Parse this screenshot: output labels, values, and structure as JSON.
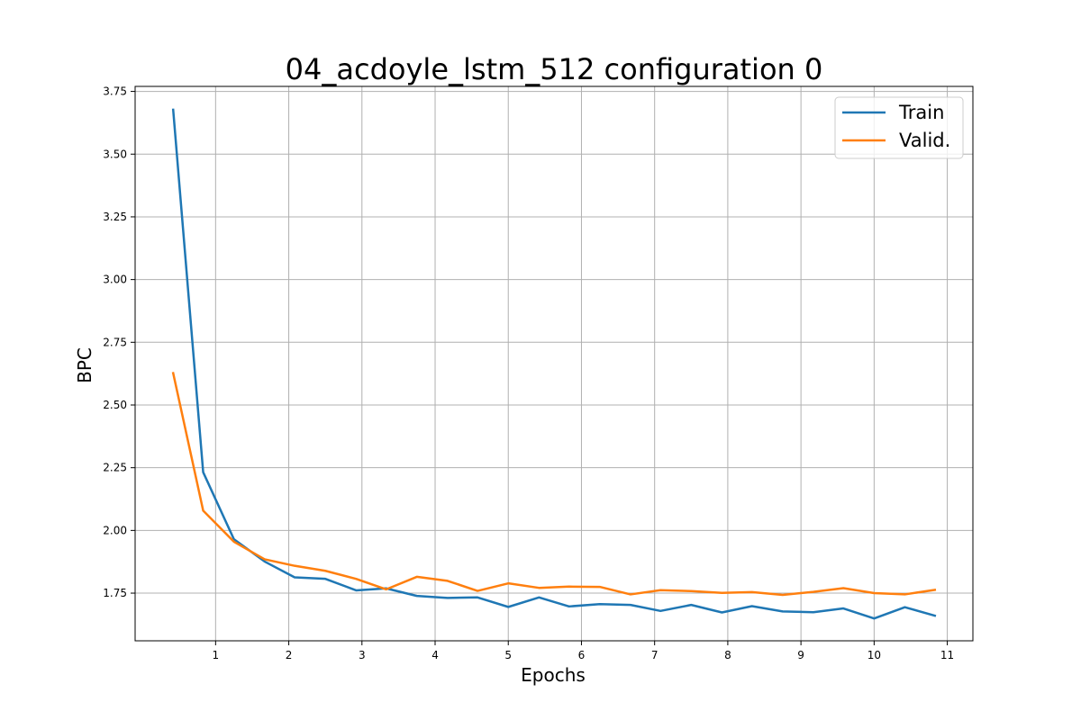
{
  "chart_data": {
    "type": "line",
    "title": "04_acdoyle_lstm_512 configuration 0",
    "xlabel": "Epochs",
    "ylabel": "BPC",
    "xlim": [
      -0.1,
      11.35
    ],
    "ylim": [
      1.56,
      3.77
    ],
    "x_ticks": [
      1,
      2,
      3,
      4,
      5,
      6,
      7,
      8,
      9,
      10,
      11
    ],
    "x_tick_labels": [
      "1",
      "2",
      "3",
      "4",
      "5",
      "6",
      "7",
      "8",
      "9",
      "10",
      "11"
    ],
    "y_ticks": [
      1.75,
      2.0,
      2.25,
      2.5,
      2.75,
      3.0,
      3.25,
      3.5,
      3.75
    ],
    "y_tick_labels": [
      "1.75",
      "2.00",
      "2.25",
      "2.50",
      "2.75",
      "3.00",
      "3.25",
      "3.50",
      "3.75"
    ],
    "grid": true,
    "legend_position": "top-right",
    "x": [
      0.42,
      0.83,
      1.25,
      1.67,
      2.08,
      2.5,
      2.92,
      3.33,
      3.75,
      4.17,
      4.58,
      5.0,
      5.42,
      5.83,
      6.25,
      6.67,
      7.08,
      7.5,
      7.92,
      8.33,
      8.75,
      9.17,
      9.58,
      10.0,
      10.42,
      10.83
    ],
    "series": [
      {
        "name": "Train",
        "color": "#1f77b4",
        "values": [
          3.677,
          2.232,
          1.965,
          1.876,
          1.813,
          1.807,
          1.761,
          1.769,
          1.739,
          1.731,
          1.733,
          1.695,
          1.733,
          1.697,
          1.706,
          1.703,
          1.679,
          1.703,
          1.673,
          1.698,
          1.677,
          1.674,
          1.689,
          1.649,
          1.694,
          1.66
        ]
      },
      {
        "name": "Valid.",
        "color": "#ff7f0e",
        "values": [
          2.627,
          2.079,
          1.955,
          1.885,
          1.859,
          1.839,
          1.807,
          1.765,
          1.815,
          1.799,
          1.759,
          1.789,
          1.771,
          1.776,
          1.775,
          1.745,
          1.762,
          1.758,
          1.751,
          1.754,
          1.743,
          1.755,
          1.77,
          1.75,
          1.745,
          1.763
        ]
      }
    ]
  }
}
